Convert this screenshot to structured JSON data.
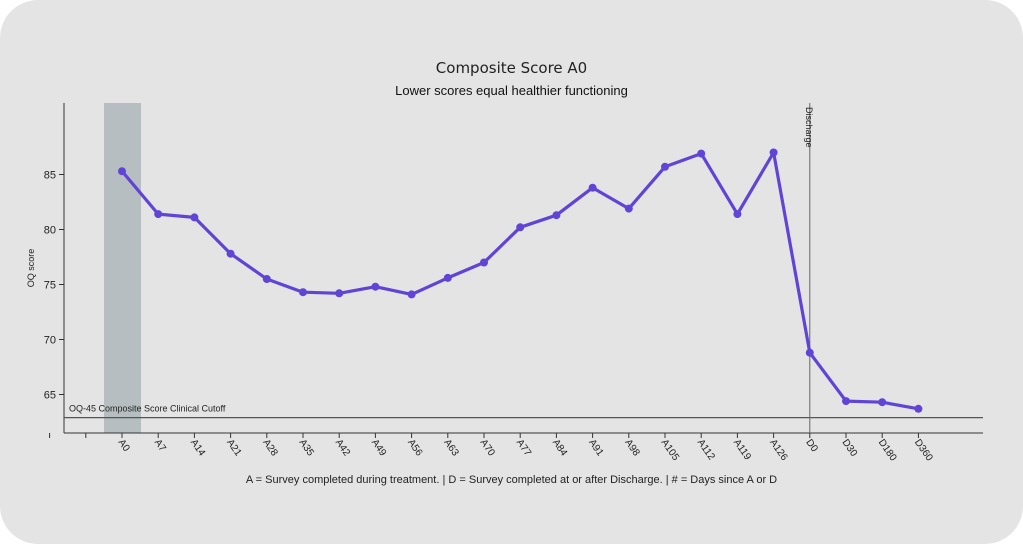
{
  "chart_data": {
    "type": "line",
    "title": "Composite Score A0",
    "subtitle": "Lower scores equal healthier functioning",
    "ylabel": "OQ score",
    "xlabel": "",
    "footnote": "A = Survey completed during treatment. | D = Survey completed at or after Discharge. | # = Days since A or D",
    "categories": [
      "A0",
      "A7",
      "A14",
      "A21",
      "A28",
      "A35",
      "A42",
      "A49",
      "A56",
      "A63",
      "A70",
      "A77",
      "A84",
      "A91",
      "A98",
      "A105",
      "A112",
      "A119",
      "A126",
      "D0",
      "D30",
      "D180",
      "D360"
    ],
    "series": [
      {
        "values": [
          85.3,
          81.4,
          81.1,
          77.8,
          75.5,
          74.3,
          74.2,
          74.8,
          74.1,
          75.6,
          77.0,
          80.2,
          81.3,
          83.8,
          81.9,
          85.7,
          86.9,
          81.4,
          87.0,
          68.8,
          64.4,
          64.3,
          63.7
        ],
        "color": "#6044d6"
      }
    ],
    "ylim": [
      61.5,
      91.5
    ],
    "yticks": [
      65,
      70,
      75,
      80,
      85
    ],
    "grid": false,
    "shaded_category": "A0",
    "shaded_color": "#b7bec1",
    "cutoff": {
      "value": 62.9,
      "label": "OQ-45 Composite Score Clinical Cutoff",
      "color": "#555555"
    },
    "discharge": {
      "category": "D0",
      "label": "Discharge"
    }
  }
}
